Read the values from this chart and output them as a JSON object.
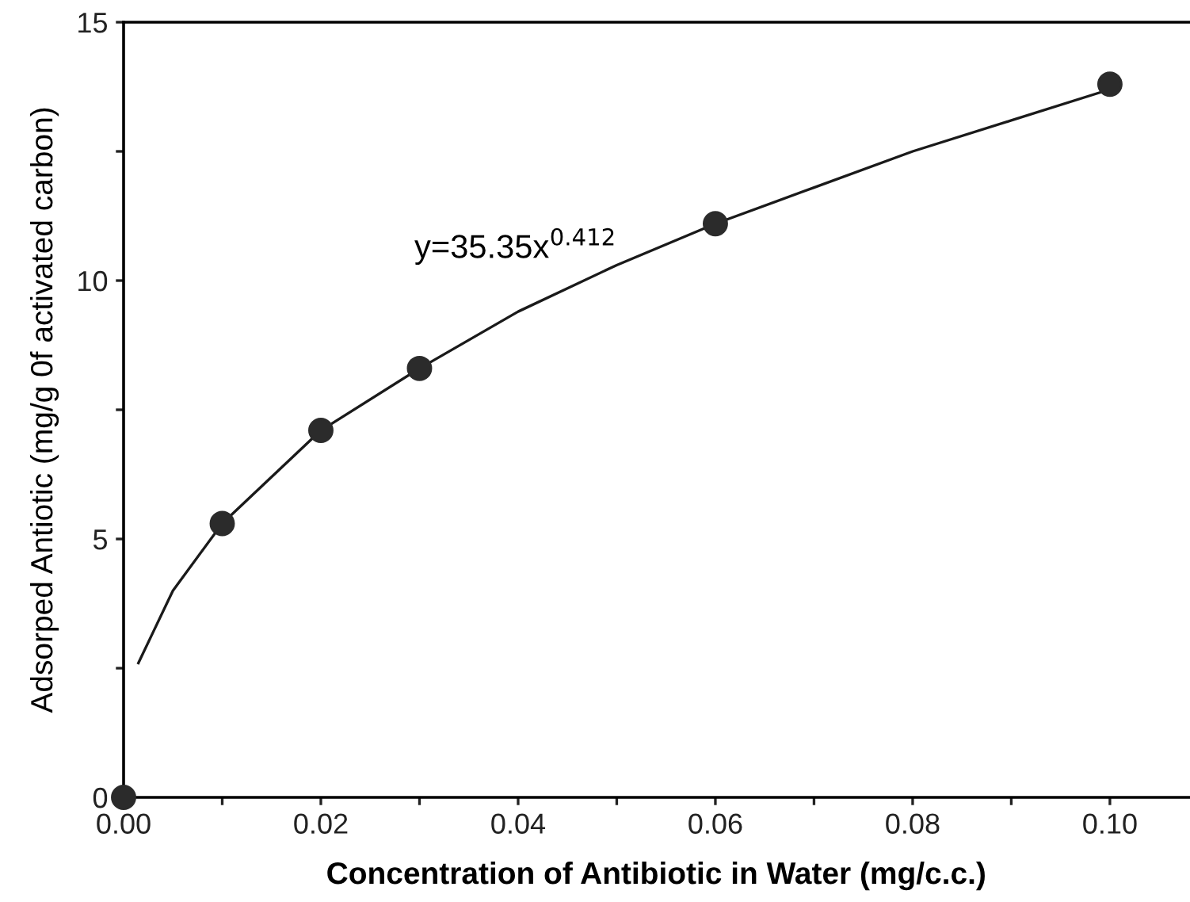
{
  "chart_data": {
    "type": "scatter",
    "xlabel": "Concentration of Antibiotic in Water (mg/c.c.)",
    "ylabel": "Adsorped Antiotic (mg/g 0f activated carbon)",
    "series": [
      {
        "color": "#2b2b2b",
        "marker": "circle",
        "x": [
          0.0,
          0.01,
          0.02,
          0.03,
          0.06,
          0.1
        ],
        "values": [
          0.0,
          5.3,
          7.1,
          8.3,
          11.1,
          13.8
        ]
      },
      {
        "type": "line",
        "color": "#1a1a1a",
        "marker": "none",
        "line_style": "solid",
        "x": [
          0.0015,
          0.003,
          0.005,
          0.01,
          0.02,
          0.03,
          0.04,
          0.05,
          0.06,
          0.07,
          0.08,
          0.09,
          0.1
        ],
        "values": [
          2.6,
          3.2,
          4.0,
          5.3,
          7.1,
          8.3,
          9.4,
          10.3,
          11.1,
          11.8,
          12.5,
          13.1,
          13.7
        ]
      }
    ],
    "annotations": [
      {
        "text": "y=35.35x$^{0.412}$",
        "x": 0.05,
        "y": 10.3
      }
    ],
    "xlim": [
      0,
      0.108
    ],
    "xticks": [
      {
        "value": 0.0,
        "label": "0.00"
      },
      {
        "value": 0.01,
        "label": null
      },
      {
        "value": 0.02,
        "label": "0.02"
      },
      {
        "value": 0.03,
        "label": null
      },
      {
        "value": 0.04,
        "label": "0.04"
      },
      {
        "value": 0.05,
        "label": null
      },
      {
        "value": 0.06,
        "label": "0.06"
      },
      {
        "value": 0.07,
        "label": null
      },
      {
        "value": 0.08,
        "label": "0.08"
      },
      {
        "value": 0.09,
        "label": null
      },
      {
        "value": 0.1,
        "label": "0.10"
      }
    ],
    "ylim": [
      0,
      15
    ],
    "yticks": [
      0,
      {
        "value": 2.5,
        "label": null
      },
      5,
      {
        "value": 7.5,
        "label": null
      },
      10,
      {
        "value": 12.5,
        "label": null
      },
      15
    ],
    "grid": false,
    "legend": false
  }
}
